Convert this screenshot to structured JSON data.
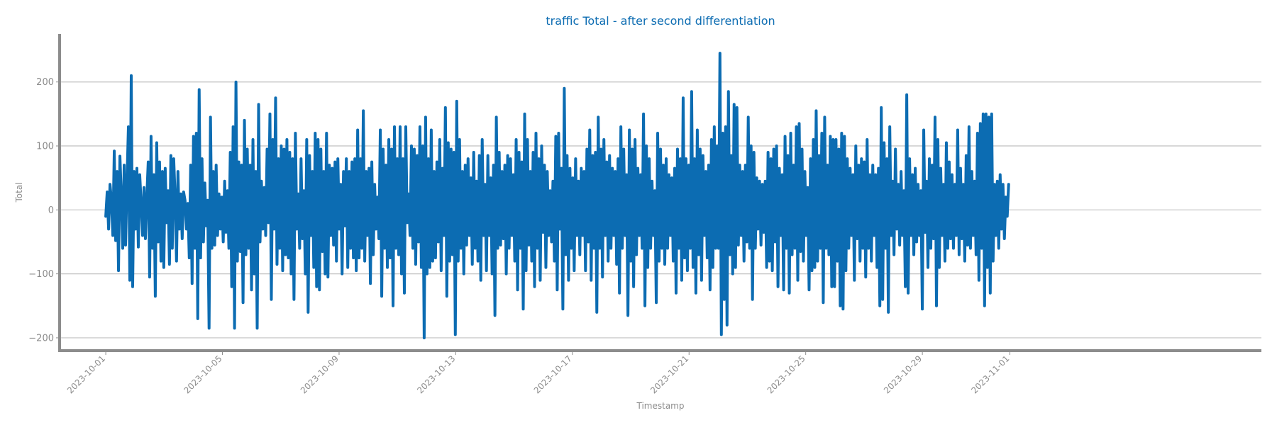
{
  "colors": {
    "line": "#0c6cb2",
    "title": "#0c6cb2",
    "grid": "#c0c0c0",
    "axis": "#8c8c8c",
    "text": "#8c8c8c"
  },
  "chart_data": {
    "type": "line",
    "title": "traffic Total - after second differentiation",
    "xlabel": "Timestamp",
    "ylabel": "Total",
    "x_range": [
      "2023-09-29T10:00",
      "2023-11-09T15:00"
    ],
    "ylim": [
      -220,
      275
    ],
    "x_ticks": [
      "2023-10-01",
      "2023-10-05",
      "2023-10-09",
      "2023-10-13",
      "2023-10-17",
      "2023-10-21",
      "2023-10-25",
      "2023-10-29",
      "2023-11-01"
    ],
    "y_ticks": [
      -200,
      -100,
      0,
      100,
      200
    ],
    "grid": {
      "y": true,
      "x": false
    },
    "series": [
      {
        "x_start": "2023-10-01T00:00",
        "x_end": "2023-10-31T23:00",
        "x_step": "1h",
        "values": [
          -10,
          28,
          -30,
          40,
          15,
          -40,
          92,
          -48,
          60,
          -95,
          84,
          20,
          -60,
          70,
          -55,
          45,
          130,
          -110,
          210,
          -120,
          60,
          -30,
          65,
          -58,
          55,
          10,
          -40,
          35,
          -45,
          20,
          75,
          -105,
          115,
          -60,
          55,
          -135,
          105,
          -50,
          75,
          -80,
          60,
          -90,
          65,
          -20,
          30,
          -85,
          85,
          -60,
          80,
          20,
          -80,
          60,
          -30,
          25,
          -45,
          28,
          15,
          -30,
          10,
          -75,
          70,
          -115,
          115,
          -60,
          120,
          -170,
          188,
          -75,
          80,
          -50,
          42,
          -25,
          15,
          -185,
          145,
          -60,
          60,
          -55,
          70,
          -40,
          25,
          -30,
          20,
          -50,
          45,
          -35,
          30,
          -60,
          90,
          -120,
          130,
          -185,
          200,
          -80,
          75,
          -65,
          70,
          -145,
          140,
          -70,
          95,
          -60,
          70,
          -125,
          110,
          -100,
          60,
          -185,
          165,
          -50,
          45,
          -30,
          35,
          -40,
          95,
          -20,
          150,
          -140,
          110,
          -30,
          175,
          -85,
          80,
          -60,
          100,
          -95,
          95,
          -70,
          110,
          -75,
          90,
          -100,
          80,
          -140,
          120,
          -30,
          25,
          -60,
          80,
          -45,
          30,
          -100,
          110,
          -160,
          85,
          -40,
          60,
          -90,
          120,
          -120,
          110,
          -125,
          95,
          -65,
          60,
          -100,
          120,
          -105,
          70,
          -40,
          65,
          -55,
          75,
          -80,
          80,
          -30,
          40,
          -100,
          60,
          -25,
          80,
          -90,
          60,
          -60,
          75,
          -75,
          80,
          -95,
          125,
          -75,
          80,
          -60,
          155,
          -80,
          60,
          -40,
          65,
          -115,
          75,
          -70,
          40,
          -30,
          20,
          -45,
          125,
          -135,
          95,
          -60,
          70,
          -90,
          110,
          -75,
          95,
          -150,
          130,
          -60,
          80,
          -70,
          130,
          -100,
          80,
          -130,
          130,
          -20,
          25,
          -40,
          100,
          -60,
          95,
          -85,
          85,
          -50,
          130,
          -90,
          100,
          -200,
          145,
          -100,
          80,
          -90,
          125,
          -80,
          60,
          -75,
          75,
          -50,
          110,
          -95,
          65,
          -40,
          160,
          -135,
          105,
          -80,
          95,
          -70,
          90,
          -195,
          170,
          -80,
          110,
          -60,
          60,
          -100,
          70,
          -55,
          80,
          -40,
          50,
          -85,
          90,
          -60,
          45,
          -80,
          85,
          -110,
          110,
          -40,
          40,
          -95,
          85,
          -40,
          50,
          -100,
          70,
          -165,
          145,
          -60,
          90,
          -55,
          60,
          -45,
          70,
          -100,
          85,
          -60,
          80,
          -40,
          55,
          -80,
          110,
          -125,
          90,
          -60,
          75,
          -155,
          150,
          -95,
          110,
          -55,
          60,
          -80,
          90,
          -120,
          120,
          -60,
          80,
          -110,
          100,
          -35,
          70,
          -90,
          60,
          -40,
          30,
          -50,
          45,
          -80,
          115,
          -125,
          120,
          -30,
          65,
          -155,
          190,
          -70,
          85,
          -110,
          65,
          -60,
          50,
          -95,
          80,
          -40,
          45,
          -70,
          65,
          -40,
          60,
          -95,
          95,
          -50,
          125,
          -110,
          85,
          -60,
          90,
          -160,
          145,
          -60,
          95,
          -105,
          110,
          -40,
          75,
          -80,
          85,
          -60,
          65,
          -40,
          60,
          -85,
          80,
          -130,
          130,
          -60,
          95,
          -40,
          55,
          -165,
          125,
          -80,
          95,
          -120,
          110,
          -70,
          65,
          -40,
          55,
          -60,
          150,
          -150,
          100,
          -90,
          80,
          -60,
          45,
          -40,
          30,
          -145,
          120,
          -80,
          95,
          -60,
          70,
          -85,
          80,
          -60,
          55,
          -40,
          50,
          -80,
          65,
          -130,
          95,
          -60,
          80,
          -110,
          175,
          -75,
          80,
          -95,
          70,
          -60,
          185,
          -90,
          80,
          -130,
          125,
          -70,
          95,
          -110,
          85,
          -40,
          60,
          -75,
          70,
          -125,
          110,
          -90,
          130,
          -60,
          100,
          -60,
          245,
          -195,
          120,
          -140,
          130,
          -180,
          185,
          -70,
          85,
          -100,
          165,
          -90,
          160,
          -55,
          70,
          -40,
          60,
          -80,
          70,
          -50,
          145,
          -60,
          100,
          -140,
          90,
          -60,
          50,
          -30,
          45,
          -55,
          40,
          -35,
          45,
          -90,
          90,
          -80,
          80,
          -95,
          95,
          -50,
          100,
          -120,
          65,
          -40,
          55,
          -125,
          115,
          -60,
          85,
          -130,
          120,
          -70,
          70,
          -60,
          130,
          -110,
          135,
          -65,
          95,
          -80,
          60,
          -40,
          35,
          -125,
          80,
          -95,
          110,
          -90,
          155,
          -80,
          85,
          -60,
          120,
          -145,
          145,
          -60,
          70,
          -70,
          115,
          -120,
          110,
          -120,
          110,
          -80,
          95,
          -150,
          120,
          -155,
          115,
          -95,
          80,
          -60,
          65,
          -40,
          55,
          -110,
          100,
          -45,
          70,
          -80,
          80,
          -60,
          75,
          -105,
          110,
          -60,
          55,
          -80,
          70,
          -40,
          55,
          -90,
          65,
          -150,
          160,
          -140,
          105,
          -60,
          80,
          -160,
          130,
          -40,
          45,
          -70,
          95,
          -30,
          40,
          -55,
          60,
          -40,
          30,
          -120,
          180,
          -130,
          80,
          -40,
          55,
          -70,
          65,
          -50,
          40,
          -40,
          30,
          -155,
          125,
          -35,
          45,
          -90,
          80,
          -60,
          70,
          -45,
          145,
          -150,
          110,
          -90,
          65,
          -40,
          40,
          -80,
          105,
          -60,
          75,
          -45,
          55,
          -60,
          40,
          -40,
          125,
          -70,
          65,
          -45,
          40,
          -80,
          85,
          -55,
          130,
          -60,
          60,
          -40,
          45,
          -70,
          120,
          -110,
          135,
          -60,
          150,
          -150,
          150,
          -90,
          145,
          -130,
          150,
          -80,
          40,
          -40,
          45,
          -60,
          55,
          -30,
          40,
          -45,
          20,
          -10,
          40
        ]
      }
    ]
  }
}
